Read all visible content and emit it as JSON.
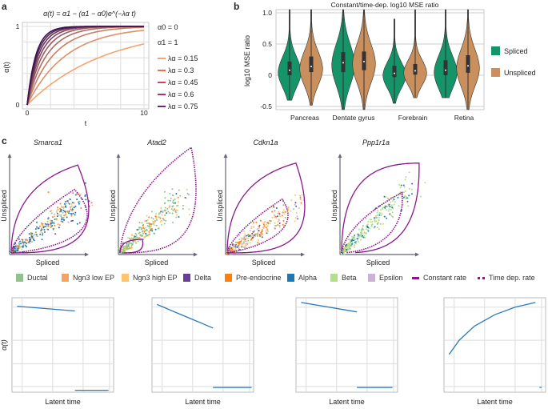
{
  "panel_labels": [
    "a",
    "b",
    "c"
  ],
  "chart_data": [
    {
      "type": "line",
      "panel": "a",
      "title": "α(t) = α1 − (α1 − α0)e^(−λα t)",
      "xlabel": "t",
      "ylabel": "α(t)",
      "xlim": [
        0,
        10
      ],
      "ylim": [
        0,
        1
      ],
      "xticks": [
        "0",
        "10"
      ],
      "yticks": [
        "0",
        "1"
      ],
      "grid": true,
      "params": [
        "α0 = 0",
        "α1 = 1"
      ],
      "alpha0": 0,
      "alpha1": 1,
      "curve_lambdas": [
        0.15,
        0.3,
        0.45,
        0.6,
        0.75,
        0.9,
        1.05,
        1.2,
        1.35
      ],
      "legend": [
        {
          "label": "λα = 0.15",
          "lambda": 0.15,
          "color": "#f4a46c"
        },
        {
          "label": "λα = 0.3",
          "lambda": 0.3,
          "color": "#ee6a50"
        },
        {
          "label": "λα = 0.45",
          "lambda": 0.45,
          "color": "#d6415f"
        },
        {
          "label": "λα = 0.6",
          "lambda": 0.6,
          "color": "#a8307a"
        },
        {
          "label": "λα = 0.75",
          "lambda": 0.75,
          "color": "#6e2478"
        }
      ],
      "legend_placement": "right"
    },
    {
      "type": "violin",
      "panel": "b",
      "title": "Constant/time-dep. log10 MSE ratio",
      "ylabel": "log10 MSE ratio",
      "ylim": [
        -0.55,
        1.05
      ],
      "yticks": [
        "1.0",
        "0.5",
        "0",
        "-0.5"
      ],
      "grid": true,
      "categories": [
        "Pancreas",
        "Dentate gyrus",
        "Forebrain",
        "Retina"
      ],
      "series": [
        {
          "name": "Spliced",
          "color": "#15946a",
          "median": [
            0.08,
            0.2,
            0.03,
            0.08
          ],
          "q1": [
            0.0,
            0.05,
            -0.03,
            0.0
          ],
          "q3": [
            0.22,
            0.37,
            0.15,
            0.24
          ],
          "min": [
            -0.4,
            -0.55,
            -0.45,
            -0.36
          ],
          "max": [
            1.05,
            1.05,
            0.9,
            1.05
          ]
        },
        {
          "name": "Unspliced",
          "color": "#c98f5c",
          "median": [
            0.14,
            0.22,
            0.07,
            0.15
          ],
          "q1": [
            0.05,
            0.08,
            0.01,
            0.04
          ],
          "q3": [
            0.3,
            0.38,
            0.18,
            0.32
          ],
          "min": [
            -0.48,
            -0.55,
            -0.36,
            -0.55
          ],
          "max": [
            1.05,
            1.05,
            1.05,
            1.05
          ]
        }
      ],
      "legend_placement": "right"
    },
    {
      "type": "scatter",
      "panel": "c",
      "xlabel": "Spliced",
      "ylabel": "Unspliced",
      "genes": [
        "Smarca1",
        "Atad2",
        "Cdkn1a",
        "Ppp1r1a"
      ],
      "legend": [
        {
          "label": "Ductal",
          "color": "#8fc28f"
        },
        {
          "label": "Ngn3 low EP",
          "color": "#f4a460"
        },
        {
          "label": "Ngn3 high EP",
          "color": "#ffc470"
        },
        {
          "label": "Delta",
          "color": "#6a3d9a"
        },
        {
          "label": "Pre-endocrine",
          "color": "#ff7f0e"
        },
        {
          "label": "Alpha",
          "color": "#1f77b4"
        },
        {
          "label": "Beta",
          "color": "#b2df8a"
        },
        {
          "label": "Epsilon",
          "color": "#cab2d6"
        },
        {
          "label": "Constant rate",
          "color": "#8b168b",
          "style": "solid"
        },
        {
          "label": "Time dep. rate",
          "color": "#8b168b",
          "style": "dotted"
        }
      ]
    },
    {
      "type": "line",
      "panel": "c-bottom",
      "xlabel": "Latent time",
      "ylabel": "α(t)",
      "color": "#2a7ab9",
      "grid": true,
      "series": [
        {
          "gene": "Smarca1",
          "segments": [
            [
              [
                0.05,
                0.91
              ],
              [
                0.62,
                0.86
              ]
            ],
            [
              [
                0.62,
                0.02
              ],
              [
                0.95,
                0.02
              ]
            ]
          ]
        },
        {
          "gene": "Atad2",
          "segments": [
            [
              [
                0.05,
                0.93
              ],
              [
                0.2,
                0.86
              ],
              [
                0.4,
                0.77
              ],
              [
                0.6,
                0.68
              ]
            ],
            [
              [
                0.6,
                0.05
              ],
              [
                0.98,
                0.05
              ]
            ]
          ]
        },
        {
          "gene": "Cdkn1a",
          "segments": [
            [
              [
                0.05,
                0.95
              ],
              [
                0.6,
                0.85
              ]
            ],
            [
              [
                0.6,
                0.05
              ],
              [
                0.95,
                0.05
              ]
            ]
          ]
        },
        {
          "gene": "Ppp1r1a",
          "segments": [
            [
              [
                0.05,
                0.4
              ],
              [
                0.15,
                0.55
              ],
              [
                0.3,
                0.7
              ],
              [
                0.5,
                0.82
              ],
              [
                0.7,
                0.9
              ],
              [
                0.9,
                0.95
              ]
            ],
            [
              [
                0.94,
                0.05
              ],
              [
                0.96,
                0.05
              ]
            ]
          ]
        }
      ]
    }
  ]
}
